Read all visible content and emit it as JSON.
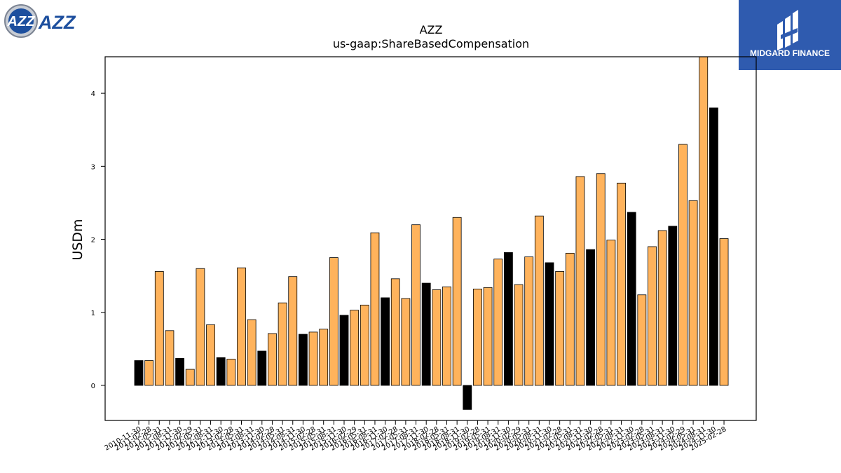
{
  "logos": {
    "azz_text": "AZZ",
    "midgard_text": "MIDGARD FINANCE"
  },
  "colors": {
    "bar_orange": "#FFB35C",
    "bar_black": "#000000",
    "midgard_blue": "#2F5BAF"
  },
  "chart_data": {
    "type": "bar",
    "title": "AZZ",
    "subtitle": "us-gaap:ShareBasedCompensation",
    "xlabel": "",
    "ylabel": "USDm",
    "ylim": [
      -0.48,
      4.5
    ],
    "yticks": [
      0,
      1,
      2,
      3,
      4
    ],
    "grid": false,
    "categories": [
      "2010-11-30",
      "2011-02-28",
      "2011-05-31",
      "2011-08-31",
      "2011-11-30",
      "2012-02-29",
      "2012-05-31",
      "2012-08-31",
      "2012-11-30",
      "2013-02-28",
      "2013-05-31",
      "2013-08-31",
      "2013-11-30",
      "2014-02-28",
      "2014-05-31",
      "2014-08-31",
      "2014-11-30",
      "2015-02-28",
      "2015-05-31",
      "2015-08-31",
      "2015-11-30",
      "2016-02-29",
      "2016-05-31",
      "2016-08-31",
      "2016-11-30",
      "2017-02-28",
      "2017-05-31",
      "2017-08-31",
      "2017-11-30",
      "2018-02-28",
      "2018-05-31",
      "2018-08-31",
      "2018-11-30",
      "2019-02-28",
      "2019-05-31",
      "2019-08-31",
      "2019-11-30",
      "2020-02-29",
      "2020-05-31",
      "2020-08-31",
      "2020-11-30",
      "2021-02-28",
      "2021-05-31",
      "2021-08-31",
      "2021-11-30",
      "2022-02-28",
      "2022-05-31",
      "2022-08-31",
      "2022-11-30",
      "2023-02-28",
      "2023-05-31",
      "2023-08-31",
      "2023-11-30",
      "2024-02-29",
      "2024-05-31",
      "2024-08-31",
      "2024-11-30",
      "2025-02-28"
    ],
    "values": [
      0.34,
      0.34,
      1.56,
      0.75,
      0.37,
      0.22,
      1.6,
      0.83,
      0.38,
      0.36,
      1.61,
      0.9,
      0.47,
      0.71,
      1.13,
      1.49,
      0.7,
      0.73,
      0.77,
      1.75,
      0.96,
      1.03,
      1.1,
      2.09,
      1.2,
      1.46,
      1.19,
      2.2,
      1.4,
      1.31,
      1.35,
      2.3,
      -0.33,
      1.32,
      1.34,
      1.73,
      1.82,
      1.38,
      1.76,
      2.32,
      1.68,
      1.56,
      1.81,
      2.86,
      1.86,
      2.9,
      1.99,
      2.77,
      2.37,
      1.24,
      1.9,
      2.12,
      2.18,
      3.3,
      2.53,
      4.53,
      3.8,
      2.01
    ],
    "bar_colors": [
      "black",
      "orange",
      "orange",
      "orange",
      "black",
      "orange",
      "orange",
      "orange",
      "black",
      "orange",
      "orange",
      "orange",
      "black",
      "orange",
      "orange",
      "orange",
      "black",
      "orange",
      "orange",
      "orange",
      "black",
      "orange",
      "orange",
      "orange",
      "black",
      "orange",
      "orange",
      "orange",
      "black",
      "orange",
      "orange",
      "orange",
      "black",
      "orange",
      "orange",
      "orange",
      "black",
      "orange",
      "orange",
      "orange",
      "black",
      "orange",
      "orange",
      "orange",
      "black",
      "orange",
      "orange",
      "orange",
      "black",
      "orange",
      "orange",
      "orange",
      "black",
      "orange",
      "orange",
      "orange",
      "black",
      "orange"
    ]
  }
}
